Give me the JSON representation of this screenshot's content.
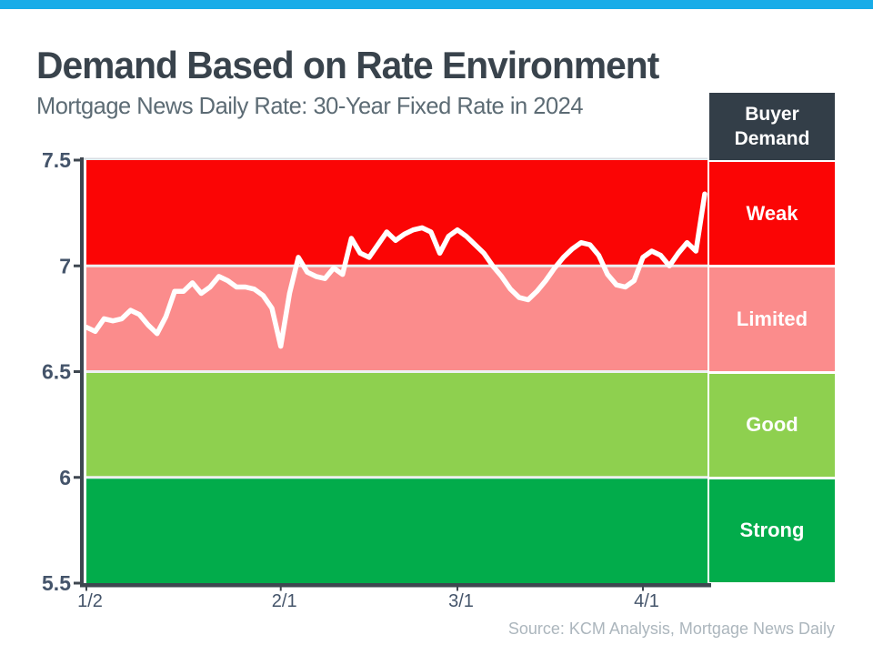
{
  "window": {
    "accent_color": "#18ACE8"
  },
  "header": {
    "title": "Demand Based on Rate Environment",
    "subtitle": "Mortgage News Daily Rate: 30-Year Fixed Rate in 2024"
  },
  "legend": {
    "header": "Buyer Demand"
  },
  "footer": {
    "source": "Source: KCM Analysis, Mortgage News Daily"
  },
  "chart_data": {
    "type": "line",
    "title": "Demand Based on Rate Environment",
    "subtitle": "Mortgage News Daily Rate: 30-Year Fixed Rate in 2024",
    "ylim": [
      5.5,
      7.5
    ],
    "grid": "band-boundaries-only",
    "legend_position": "right",
    "y_ticks": [
      {
        "label": "7.5",
        "value": 7.5
      },
      {
        "label": "7",
        "value": 7.0
      },
      {
        "label": "6.5",
        "value": 6.5
      },
      {
        "label": "6",
        "value": 6.0
      },
      {
        "label": "5.5",
        "value": 5.5
      }
    ],
    "x_ticks": [
      {
        "label": "1/2",
        "index": 0
      },
      {
        "label": "2/1",
        "index": 22
      },
      {
        "label": "3/1",
        "index": 42
      },
      {
        "label": "4/1",
        "index": 63
      }
    ],
    "bands": [
      {
        "label": "Weak",
        "from": 7.0,
        "to": 7.5,
        "color": "#FB0505"
      },
      {
        "label": "Limited",
        "from": 6.5,
        "to": 7.0,
        "color": "#FB8C8C"
      },
      {
        "label": "Good",
        "from": 6.0,
        "to": 6.5,
        "color": "#8ED04F"
      },
      {
        "label": "Strong",
        "from": 5.5,
        "to": 6.0,
        "color": "#02AC4B"
      }
    ],
    "x": [
      "1/2",
      "1/3",
      "1/4",
      "1/5",
      "1/8",
      "1/9",
      "1/10",
      "1/11",
      "1/12",
      "1/15",
      "1/16",
      "1/17",
      "1/18",
      "1/19",
      "1/22",
      "1/23",
      "1/24",
      "1/25",
      "1/26",
      "1/29",
      "1/30",
      "1/31",
      "2/1",
      "2/2",
      "2/5",
      "2/6",
      "2/7",
      "2/8",
      "2/9",
      "2/12",
      "2/13",
      "2/14",
      "2/15",
      "2/16",
      "2/20",
      "2/21",
      "2/22",
      "2/23",
      "2/26",
      "2/27",
      "2/28",
      "2/29",
      "3/1",
      "3/4",
      "3/5",
      "3/6",
      "3/7",
      "3/8",
      "3/11",
      "3/12",
      "3/13",
      "3/14",
      "3/15",
      "3/18",
      "3/19",
      "3/20",
      "3/21",
      "3/22",
      "3/25",
      "3/26",
      "3/27",
      "3/28",
      "3/29",
      "4/1",
      "4/2",
      "4/3",
      "4/4",
      "4/5",
      "4/8",
      "4/9",
      "4/10"
    ],
    "series": [
      {
        "name": "30-Year Fixed Rate",
        "color": "#FFFFFF",
        "values": [
          6.71,
          6.69,
          6.75,
          6.74,
          6.75,
          6.79,
          6.77,
          6.72,
          6.68,
          6.76,
          6.88,
          6.88,
          6.92,
          6.87,
          6.9,
          6.95,
          6.93,
          6.9,
          6.9,
          6.89,
          6.86,
          6.8,
          6.62,
          6.87,
          7.04,
          6.97,
          6.95,
          6.94,
          6.99,
          6.96,
          7.13,
          7.06,
          7.04,
          7.1,
          7.16,
          7.12,
          7.15,
          7.17,
          7.18,
          7.16,
          7.06,
          7.14,
          7.17,
          7.14,
          7.1,
          7.06,
          7.0,
          6.95,
          6.89,
          6.85,
          6.84,
          6.88,
          6.93,
          6.99,
          7.04,
          7.08,
          7.11,
          7.1,
          7.05,
          6.96,
          6.91,
          6.9,
          6.93,
          7.04,
          7.07,
          7.05,
          7.0,
          7.06,
          7.11,
          7.07,
          7.34
        ]
      }
    ]
  }
}
